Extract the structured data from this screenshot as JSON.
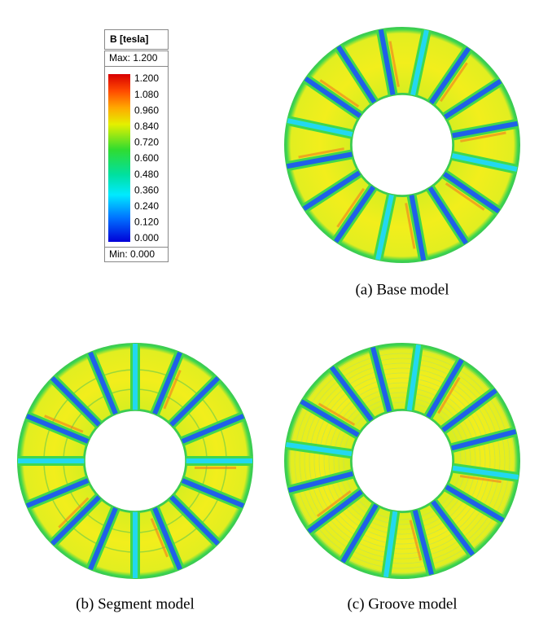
{
  "legend": {
    "title": "B [tesla]",
    "max": "Max: 1.200",
    "ticks": [
      "1.200",
      "1.080",
      "0.960",
      "0.840",
      "0.720",
      "0.600",
      "0.480",
      "0.360",
      "0.240",
      "0.120",
      "0.000"
    ],
    "min": "Min: 0.000"
  },
  "panels": [
    {
      "caption": "(a)  Base  model"
    },
    {
      "caption": "(b)  Segment  model"
    },
    {
      "caption": "(c)  Groove  model"
    }
  ]
}
